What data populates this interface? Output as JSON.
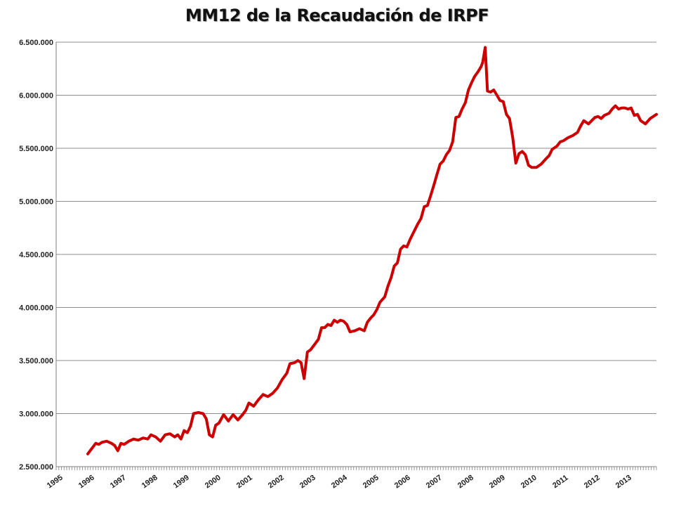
{
  "chart_data": {
    "type": "line",
    "title": "MM12 de la Recaudación de IRPF",
    "xlabel": "",
    "ylabel": "",
    "ylim": [
      2500000,
      6500000
    ],
    "xlim": [
      1995,
      2014
    ],
    "grid": "horizontal",
    "y_tick_labels": [
      "2.500.000",
      "3.000.000",
      "3.500.000",
      "4.000.000",
      "4.500.000",
      "5.000.000",
      "5.500.000",
      "6.000.000",
      "6.500.000"
    ],
    "y_ticks": [
      2500000,
      3000000,
      3500000,
      4000000,
      4500000,
      5000000,
      5500000,
      6000000,
      6500000
    ],
    "x_tick_labels": [
      "1995",
      "1996",
      "1997",
      "1998",
      "1999",
      "2000",
      "2001",
      "2002",
      "2003",
      "2004",
      "2005",
      "2006",
      "2007",
      "2008",
      "2009",
      "2010",
      "2011",
      "2012",
      "2013"
    ],
    "x_ticks": [
      1995,
      1996,
      1997,
      1998,
      1999,
      2000,
      2001,
      2002,
      2003,
      2004,
      2005,
      2006,
      2007,
      2008,
      2009,
      2010,
      2011,
      2012,
      2013
    ],
    "series": [
      {
        "color": "#cc0000",
        "points": [
          [
            1996.0,
            2620000
          ],
          [
            1996.15,
            2680000
          ],
          [
            1996.25,
            2720000
          ],
          [
            1996.35,
            2710000
          ],
          [
            1996.45,
            2730000
          ],
          [
            1996.6,
            2740000
          ],
          [
            1996.75,
            2720000
          ],
          [
            1996.85,
            2700000
          ],
          [
            1996.95,
            2650000
          ],
          [
            1997.05,
            2720000
          ],
          [
            1997.15,
            2710000
          ],
          [
            1997.3,
            2740000
          ],
          [
            1997.45,
            2760000
          ],
          [
            1997.6,
            2750000
          ],
          [
            1997.75,
            2770000
          ],
          [
            1997.9,
            2760000
          ],
          [
            1998.0,
            2800000
          ],
          [
            1998.15,
            2780000
          ],
          [
            1998.3,
            2740000
          ],
          [
            1998.45,
            2800000
          ],
          [
            1998.6,
            2810000
          ],
          [
            1998.75,
            2780000
          ],
          [
            1998.85,
            2800000
          ],
          [
            1998.95,
            2760000
          ],
          [
            1999.05,
            2840000
          ],
          [
            1999.15,
            2820000
          ],
          [
            1999.25,
            2880000
          ],
          [
            1999.35,
            3000000
          ],
          [
            1999.5,
            3010000
          ],
          [
            1999.65,
            3000000
          ],
          [
            1999.75,
            2950000
          ],
          [
            1999.85,
            2800000
          ],
          [
            1999.95,
            2780000
          ],
          [
            2000.05,
            2890000
          ],
          [
            2000.15,
            2910000
          ],
          [
            2000.3,
            2990000
          ],
          [
            2000.45,
            2930000
          ],
          [
            2000.6,
            2990000
          ],
          [
            2000.75,
            2940000
          ],
          [
            2000.9,
            2990000
          ],
          [
            2001.0,
            3030000
          ],
          [
            2001.1,
            3100000
          ],
          [
            2001.25,
            3070000
          ],
          [
            2001.4,
            3130000
          ],
          [
            2001.55,
            3180000
          ],
          [
            2001.7,
            3160000
          ],
          [
            2001.85,
            3190000
          ],
          [
            2002.0,
            3240000
          ],
          [
            2002.15,
            3320000
          ],
          [
            2002.3,
            3380000
          ],
          [
            2002.4,
            3470000
          ],
          [
            2002.55,
            3480000
          ],
          [
            2002.65,
            3500000
          ],
          [
            2002.75,
            3480000
          ],
          [
            2002.85,
            3330000
          ],
          [
            2002.95,
            3580000
          ],
          [
            2003.05,
            3600000
          ],
          [
            2003.15,
            3640000
          ],
          [
            2003.3,
            3700000
          ],
          [
            2003.4,
            3810000
          ],
          [
            2003.5,
            3810000
          ],
          [
            2003.6,
            3840000
          ],
          [
            2003.7,
            3830000
          ],
          [
            2003.8,
            3880000
          ],
          [
            2003.9,
            3860000
          ],
          [
            2004.0,
            3880000
          ],
          [
            2004.1,
            3870000
          ],
          [
            2004.2,
            3840000
          ],
          [
            2004.3,
            3770000
          ],
          [
            2004.45,
            3780000
          ],
          [
            2004.6,
            3800000
          ],
          [
            2004.75,
            3780000
          ],
          [
            2004.85,
            3860000
          ],
          [
            2004.95,
            3900000
          ],
          [
            2005.05,
            3930000
          ],
          [
            2005.15,
            3980000
          ],
          [
            2005.25,
            4050000
          ],
          [
            2005.4,
            4100000
          ],
          [
            2005.5,
            4200000
          ],
          [
            2005.6,
            4280000
          ],
          [
            2005.7,
            4390000
          ],
          [
            2005.8,
            4420000
          ],
          [
            2005.9,
            4550000
          ],
          [
            2006.0,
            4580000
          ],
          [
            2006.1,
            4570000
          ],
          [
            2006.2,
            4640000
          ],
          [
            2006.3,
            4700000
          ],
          [
            2006.45,
            4790000
          ],
          [
            2006.55,
            4840000
          ],
          [
            2006.65,
            4950000
          ],
          [
            2006.75,
            4960000
          ],
          [
            2006.85,
            5050000
          ],
          [
            2006.95,
            5150000
          ],
          [
            2007.05,
            5250000
          ],
          [
            2007.15,
            5350000
          ],
          [
            2007.25,
            5380000
          ],
          [
            2007.35,
            5440000
          ],
          [
            2007.45,
            5480000
          ],
          [
            2007.55,
            5560000
          ],
          [
            2007.65,
            5790000
          ],
          [
            2007.75,
            5800000
          ],
          [
            2007.85,
            5870000
          ],
          [
            2007.95,
            5930000
          ],
          [
            2008.05,
            6050000
          ],
          [
            2008.15,
            6120000
          ],
          [
            2008.25,
            6180000
          ],
          [
            2008.35,
            6220000
          ],
          [
            2008.45,
            6270000
          ],
          [
            2008.5,
            6310000
          ],
          [
            2008.58,
            6450000
          ],
          [
            2008.65,
            6040000
          ],
          [
            2008.75,
            6030000
          ],
          [
            2008.85,
            6050000
          ],
          [
            2008.95,
            6000000
          ],
          [
            2009.05,
            5950000
          ],
          [
            2009.15,
            5940000
          ],
          [
            2009.25,
            5820000
          ],
          [
            2009.35,
            5780000
          ],
          [
            2009.45,
            5600000
          ],
          [
            2009.55,
            5360000
          ],
          [
            2009.65,
            5450000
          ],
          [
            2009.75,
            5470000
          ],
          [
            2009.85,
            5440000
          ],
          [
            2009.95,
            5340000
          ],
          [
            2010.05,
            5320000
          ],
          [
            2010.2,
            5320000
          ],
          [
            2010.35,
            5350000
          ],
          [
            2010.5,
            5400000
          ],
          [
            2010.6,
            5430000
          ],
          [
            2010.7,
            5490000
          ],
          [
            2010.85,
            5520000
          ],
          [
            2010.95,
            5560000
          ],
          [
            2011.05,
            5570000
          ],
          [
            2011.2,
            5600000
          ],
          [
            2011.35,
            5620000
          ],
          [
            2011.5,
            5650000
          ],
          [
            2011.6,
            5710000
          ],
          [
            2011.7,
            5760000
          ],
          [
            2011.85,
            5730000
          ],
          [
            2011.95,
            5760000
          ],
          [
            2012.05,
            5790000
          ],
          [
            2012.15,
            5800000
          ],
          [
            2012.25,
            5780000
          ],
          [
            2012.35,
            5810000
          ],
          [
            2012.5,
            5830000
          ],
          [
            2012.6,
            5870000
          ],
          [
            2012.7,
            5900000
          ],
          [
            2012.8,
            5870000
          ],
          [
            2012.9,
            5880000
          ],
          [
            2013.0,
            5880000
          ],
          [
            2013.1,
            5870000
          ],
          [
            2013.2,
            5880000
          ],
          [
            2013.3,
            5810000
          ],
          [
            2013.4,
            5820000
          ],
          [
            2013.5,
            5760000
          ],
          [
            2013.65,
            5730000
          ],
          [
            2013.8,
            5780000
          ],
          [
            2013.95,
            5810000
          ],
          [
            2014.0,
            5820000
          ]
        ]
      }
    ]
  }
}
